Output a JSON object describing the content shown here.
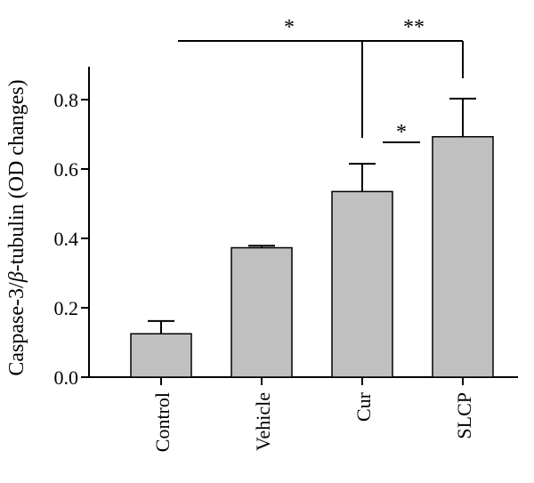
{
  "chart_data": {
    "type": "bar",
    "ylabel_prefix": "Caspase-3/",
    "ylabel_symbol": "β",
    "ylabel_suffix": "-tubulin (OD changes)",
    "categories": [
      "Control",
      "Vehicle",
      "Cur",
      "SLCP"
    ],
    "values": [
      0.125,
      0.373,
      0.535,
      0.693
    ],
    "errors": [
      0.037,
      0.006,
      0.08,
      0.11
    ],
    "ylim": [
      0,
      0.9
    ],
    "yticks": [
      "0.0",
      "0.2",
      "0.4",
      "0.6",
      "0.8"
    ],
    "ytick_values": [
      0,
      0.2,
      0.4,
      0.6,
      0.8
    ],
    "bar_color": "#c0c0c0",
    "grid": false,
    "significance": [
      {
        "label": "*",
        "from": "Control",
        "to": "Cur"
      },
      {
        "label": "**",
        "from": "Control",
        "to": "SLCP"
      },
      {
        "label": "*",
        "from": "Cur",
        "to": "SLCP"
      }
    ]
  }
}
